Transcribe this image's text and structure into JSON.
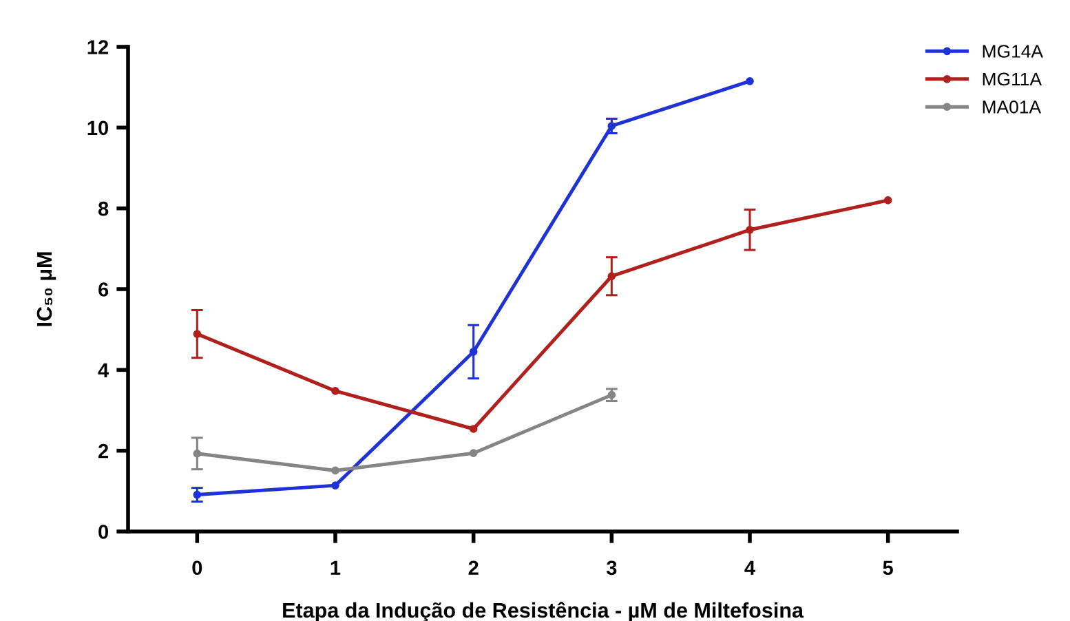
{
  "chart_data": {
    "type": "line",
    "xlabel": "Etapa da Indução de Resistência - µM de Miltefosina",
    "ylabel": "IC₅₀ μM",
    "xlim": [
      -0.5,
      5.5
    ],
    "xticks": [
      0,
      1,
      2,
      3,
      4,
      5
    ],
    "ylim": [
      0,
      12
    ],
    "yticks": [
      0,
      2,
      4,
      6,
      8,
      10,
      12
    ],
    "grid": false,
    "legend": "top right",
    "marker": "circle",
    "line_style": "solid",
    "series": [
      {
        "name": "MG14A",
        "color": "#1f32d6",
        "x": [
          0,
          1,
          2,
          3,
          4
        ],
        "values": [
          0.91,
          1.14,
          4.45,
          10.04,
          11.15
        ],
        "errors": [
          0.17,
          null,
          0.66,
          0.18,
          null
        ]
      },
      {
        "name": "MG11A",
        "color": "#b0201c",
        "x": [
          0,
          1,
          2,
          3,
          4,
          5
        ],
        "values": [
          4.89,
          3.48,
          2.54,
          6.32,
          7.47,
          8.2
        ],
        "errors": [
          0.59,
          null,
          null,
          0.47,
          0.5,
          null
        ]
      },
      {
        "name": "MA01A",
        "color": "#858585",
        "x": [
          0,
          1,
          2,
          3
        ],
        "values": [
          1.93,
          1.51,
          1.94,
          3.38
        ],
        "errors": [
          0.39,
          null,
          null,
          0.15
        ]
      }
    ]
  }
}
